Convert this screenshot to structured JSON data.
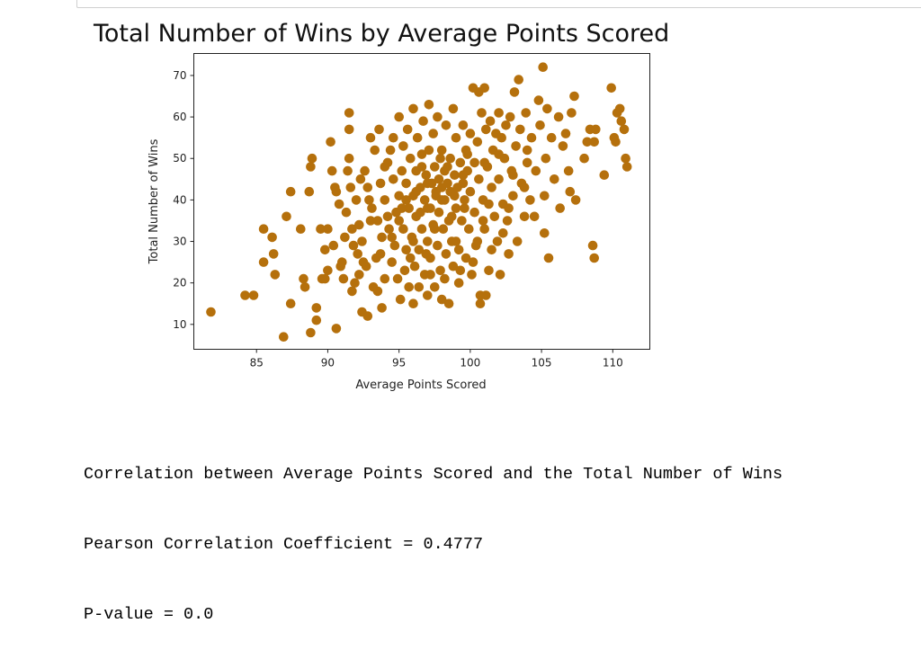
{
  "notebook": {
    "output_lines": [
      "Correlation between Average Points Scored and the Total Number of Wins",
      "Pearson Correlation Coefficient = 0.4777",
      "P-value = 0.0"
    ]
  },
  "chart_data": {
    "type": "scatter",
    "title": "Total Number of Wins by Average Points Scored",
    "xlabel": "Average Points Scored",
    "ylabel": "Total Number of Wins",
    "xlim": [
      80.6,
      112.6
    ],
    "ylim": [
      4,
      75.3
    ],
    "xticks": [
      85,
      90,
      95,
      100,
      105,
      110
    ],
    "yticks": [
      10,
      20,
      30,
      40,
      50,
      60,
      70
    ],
    "grid": false,
    "legend": null,
    "marker_color": "#b5700c",
    "pearson_r": 0.4777,
    "p_value": 0.0,
    "points": [
      [
        81.8,
        13
      ],
      [
        84.2,
        17
      ],
      [
        84.8,
        17
      ],
      [
        85.5,
        33
      ],
      [
        85.5,
        25
      ],
      [
        86.1,
        31
      ],
      [
        86.2,
        27
      ],
      [
        86.3,
        22
      ],
      [
        86.9,
        7
      ],
      [
        87.1,
        36
      ],
      [
        87.4,
        42
      ],
      [
        87.4,
        15
      ],
      [
        88.1,
        33
      ],
      [
        88.3,
        21
      ],
      [
        88.4,
        19
      ],
      [
        88.7,
        42
      ],
      [
        88.8,
        48
      ],
      [
        88.9,
        50
      ],
      [
        88.8,
        8
      ],
      [
        89.2,
        14
      ],
      [
        89.2,
        11
      ],
      [
        89.5,
        33
      ],
      [
        89.6,
        21
      ],
      [
        89.8,
        21
      ],
      [
        89.8,
        28
      ],
      [
        90.0,
        33
      ],
      [
        90.0,
        23
      ],
      [
        90.2,
        54
      ],
      [
        90.3,
        47
      ],
      [
        90.4,
        29
      ],
      [
        90.6,
        9
      ],
      [
        90.5,
        43
      ],
      [
        90.6,
        42
      ],
      [
        90.9,
        24
      ],
      [
        91.0,
        25
      ],
      [
        91.1,
        21
      ],
      [
        91.3,
        37
      ],
      [
        91.4,
        47
      ],
      [
        91.5,
        61
      ],
      [
        91.5,
        57
      ],
      [
        91.5,
        50
      ],
      [
        91.6,
        43
      ],
      [
        91.7,
        18
      ],
      [
        91.7,
        33
      ],
      [
        91.8,
        29
      ],
      [
        91.9,
        20
      ],
      [
        92.0,
        40
      ],
      [
        92.1,
        27
      ],
      [
        92.2,
        22
      ],
      [
        92.3,
        45
      ],
      [
        92.4,
        13
      ],
      [
        92.4,
        30
      ],
      [
        92.6,
        47
      ],
      [
        92.7,
        24
      ],
      [
        92.8,
        12
      ],
      [
        92.8,
        43
      ],
      [
        93.0,
        55
      ],
      [
        93.0,
        35
      ],
      [
        93.1,
        38
      ],
      [
        93.2,
        19
      ],
      [
        93.3,
        52
      ],
      [
        93.4,
        26
      ],
      [
        93.5,
        18
      ],
      [
        93.6,
        57
      ],
      [
        93.7,
        44
      ],
      [
        93.8,
        31
      ],
      [
        93.8,
        14
      ],
      [
        94.0,
        40
      ],
      [
        94.0,
        21
      ],
      [
        94.2,
        49
      ],
      [
        94.3,
        33
      ],
      [
        94.4,
        52
      ],
      [
        94.5,
        25
      ],
      [
        94.6,
        45
      ],
      [
        94.6,
        55
      ],
      [
        94.7,
        29
      ],
      [
        94.8,
        37
      ],
      [
        94.9,
        21
      ],
      [
        95.0,
        60
      ],
      [
        95.0,
        41
      ],
      [
        95.1,
        16
      ],
      [
        95.2,
        47
      ],
      [
        95.3,
        53
      ],
      [
        95.3,
        33
      ],
      [
        95.4,
        23
      ],
      [
        95.5,
        44
      ],
      [
        95.5,
        28
      ],
      [
        95.6,
        57
      ],
      [
        95.7,
        38
      ],
      [
        95.7,
        19
      ],
      [
        95.8,
        50
      ],
      [
        95.9,
        31
      ],
      [
        96.0,
        62
      ],
      [
        96.0,
        41
      ],
      [
        96.0,
        15
      ],
      [
        96.1,
        24
      ],
      [
        96.2,
        47
      ],
      [
        96.2,
        36
      ],
      [
        96.3,
        55
      ],
      [
        96.4,
        28
      ],
      [
        96.4,
        19
      ],
      [
        96.5,
        43
      ],
      [
        96.6,
        51
      ],
      [
        96.6,
        33
      ],
      [
        96.7,
        59
      ],
      [
        96.8,
        40
      ],
      [
        96.8,
        22
      ],
      [
        96.9,
        46
      ],
      [
        97.0,
        30
      ],
      [
        97.0,
        17
      ],
      [
        97.1,
        63
      ],
      [
        97.1,
        52
      ],
      [
        97.2,
        38
      ],
      [
        97.2,
        26
      ],
      [
        97.3,
        44
      ],
      [
        97.4,
        56
      ],
      [
        97.4,
        34
      ],
      [
        97.5,
        19
      ],
      [
        97.5,
        48
      ],
      [
        97.6,
        41
      ],
      [
        97.7,
        29
      ],
      [
        97.7,
        60
      ],
      [
        97.8,
        45
      ],
      [
        97.8,
        37
      ],
      [
        97.9,
        23
      ],
      [
        98.0,
        52
      ],
      [
        98.0,
        43
      ],
      [
        98.0,
        16
      ],
      [
        98.1,
        33
      ],
      [
        98.2,
        47
      ],
      [
        98.2,
        40
      ],
      [
        98.3,
        27
      ],
      [
        98.3,
        58
      ],
      [
        98.4,
        44
      ],
      [
        98.5,
        35
      ],
      [
        98.5,
        15
      ],
      [
        98.6,
        50
      ],
      [
        98.6,
        42
      ],
      [
        98.7,
        30
      ],
      [
        98.8,
        24
      ],
      [
        98.8,
        62
      ],
      [
        98.9,
        46
      ],
      [
        99.0,
        38
      ],
      [
        99.0,
        55
      ],
      [
        99.1,
        43
      ],
      [
        99.2,
        28
      ],
      [
        99.2,
        20
      ],
      [
        99.3,
        49
      ],
      [
        99.4,
        35
      ],
      [
        99.5,
        44
      ],
      [
        99.5,
        58
      ],
      [
        99.6,
        40
      ],
      [
        99.7,
        26
      ],
      [
        99.7,
        52
      ],
      [
        99.8,
        47
      ],
      [
        99.9,
        33
      ],
      [
        100.0,
        56
      ],
      [
        100.0,
        42
      ],
      [
        100.1,
        22
      ],
      [
        100.2,
        67
      ],
      [
        100.3,
        49
      ],
      [
        100.3,
        37
      ],
      [
        100.4,
        29
      ],
      [
        100.5,
        54
      ],
      [
        100.6,
        45
      ],
      [
        100.6,
        66
      ],
      [
        100.7,
        17
      ],
      [
        100.7,
        15
      ],
      [
        100.8,
        61
      ],
      [
        100.9,
        40
      ],
      [
        101.0,
        67
      ],
      [
        101.0,
        33
      ],
      [
        101.1,
        57
      ],
      [
        101.1,
        17
      ],
      [
        101.2,
        48
      ],
      [
        101.3,
        23
      ],
      [
        101.4,
        59
      ],
      [
        101.5,
        43
      ],
      [
        101.6,
        52
      ],
      [
        101.7,
        36
      ],
      [
        101.8,
        56
      ],
      [
        101.9,
        30
      ],
      [
        102.0,
        61
      ],
      [
        102.0,
        45
      ],
      [
        102.1,
        22
      ],
      [
        102.2,
        55
      ],
      [
        102.3,
        39
      ],
      [
        102.4,
        50
      ],
      [
        102.5,
        58
      ],
      [
        102.6,
        35
      ],
      [
        102.7,
        27
      ],
      [
        102.8,
        60
      ],
      [
        102.9,
        47
      ],
      [
        103.0,
        41
      ],
      [
        103.1,
        66
      ],
      [
        103.2,
        53
      ],
      [
        103.3,
        30
      ],
      [
        103.4,
        69
      ],
      [
        103.5,
        57
      ],
      [
        103.6,
        44
      ],
      [
        103.8,
        36
      ],
      [
        103.9,
        61
      ],
      [
        104.0,
        49
      ],
      [
        104.2,
        40
      ],
      [
        104.3,
        55
      ],
      [
        104.5,
        36
      ],
      [
        104.6,
        47
      ],
      [
        104.8,
        64
      ],
      [
        104.9,
        58
      ],
      [
        105.1,
        72
      ],
      [
        105.2,
        41
      ],
      [
        105.3,
        50
      ],
      [
        105.2,
        32
      ],
      [
        105.4,
        62
      ],
      [
        105.5,
        26
      ],
      [
        105.7,
        55
      ],
      [
        105.9,
        45
      ],
      [
        106.2,
        60
      ],
      [
        106.3,
        38
      ],
      [
        106.5,
        53
      ],
      [
        106.7,
        56
      ],
      [
        106.9,
        47
      ],
      [
        107.0,
        42
      ],
      [
        107.1,
        61
      ],
      [
        107.3,
        65
      ],
      [
        107.4,
        40
      ],
      [
        108.0,
        50
      ],
      [
        108.2,
        54
      ],
      [
        108.4,
        57
      ],
      [
        108.7,
        54
      ],
      [
        108.8,
        57
      ],
      [
        108.6,
        29
      ],
      [
        108.7,
        26
      ],
      [
        109.4,
        46
      ],
      [
        109.9,
        67
      ],
      [
        110.1,
        55
      ],
      [
        110.2,
        54
      ],
      [
        110.3,
        61
      ],
      [
        110.5,
        62
      ],
      [
        110.6,
        59
      ],
      [
        110.8,
        57
      ],
      [
        110.9,
        50
      ],
      [
        111.0,
        48
      ],
      [
        95.5,
        40
      ],
      [
        96.2,
        42
      ],
      [
        97.0,
        44
      ],
      [
        97.6,
        42
      ],
      [
        98.4,
        48
      ],
      [
        98.9,
        41
      ],
      [
        99.6,
        38
      ],
      [
        94.2,
        36
      ],
      [
        93.5,
        35
      ],
      [
        92.9,
        40
      ],
      [
        95.8,
        26
      ],
      [
        96.9,
        27
      ],
      [
        98.2,
        21
      ],
      [
        99.3,
        23
      ],
      [
        100.2,
        25
      ],
      [
        101.5,
        28
      ],
      [
        102.3,
        32
      ],
      [
        93.7,
        27
      ],
      [
        94.5,
        31
      ],
      [
        97.5,
        33
      ],
      [
        98.7,
        36
      ],
      [
        100.9,
        35
      ],
      [
        102.7,
        38
      ],
      [
        103.8,
        43
      ],
      [
        96.6,
        48
      ],
      [
        97.9,
        50
      ],
      [
        99.8,
        51
      ],
      [
        94.0,
        48
      ],
      [
        92.2,
        34
      ],
      [
        91.2,
        31
      ],
      [
        90.8,
        39
      ],
      [
        92.5,
        25
      ],
      [
        95.0,
        35
      ],
      [
        96.0,
        30
      ],
      [
        97.2,
        22
      ],
      [
        99.0,
        30
      ],
      [
        101.3,
        39
      ],
      [
        100.5,
        30
      ],
      [
        103.0,
        46
      ],
      [
        104.0,
        52
      ],
      [
        102.0,
        51
      ],
      [
        98.0,
        40
      ],
      [
        97.0,
        38
      ],
      [
        96.5,
        37
      ],
      [
        95.2,
        38
      ],
      [
        99.5,
        46
      ],
      [
        101.0,
        49
      ]
    ]
  }
}
